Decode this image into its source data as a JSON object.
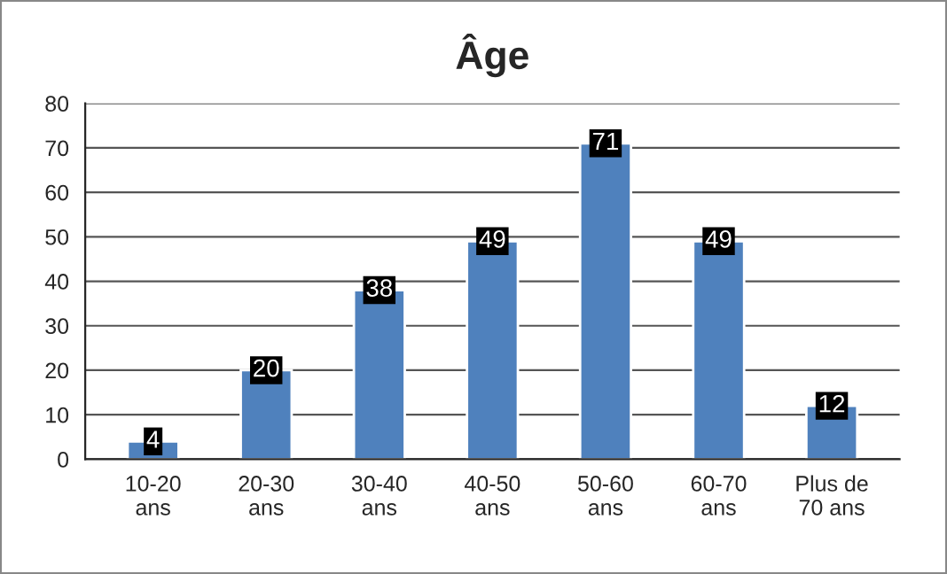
{
  "chart_data": {
    "type": "bar",
    "title": "Âge",
    "categories": [
      "10-20\nans",
      "20-30\nans",
      "30-40\nans",
      "40-50\nans",
      "50-60\nans",
      "60-70\nans",
      "Plus de\n70 ans"
    ],
    "values": [
      4,
      20,
      38,
      49,
      71,
      49,
      12
    ],
    "color": "#4f81bd",
    "ylim": [
      0,
      80
    ],
    "yticks": [
      0,
      10,
      20,
      30,
      40,
      50,
      60,
      70,
      80
    ],
    "grid": "y",
    "data_labels": true,
    "legend": false
  }
}
